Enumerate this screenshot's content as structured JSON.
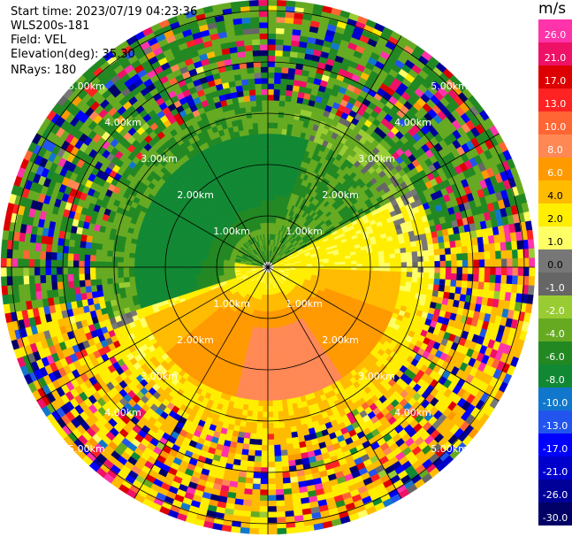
{
  "header": {
    "start_time": "Start time: 2023/07/19 04:23:36",
    "instrument": "WLS200s-181",
    "field": "Field: VEL",
    "elevation": "Elevation(deg): 35.30",
    "nrays": "NRays: 180"
  },
  "chart_data": {
    "type": "heatmap",
    "projection": "polar",
    "field": "VEL",
    "unit": "m/s",
    "range_rings_km": [
      1,
      2,
      3,
      4,
      5
    ],
    "ring_labels": [
      "1.00km",
      "2.00km",
      "3.00km",
      "4.00km",
      "5.00km"
    ],
    "spokes_deg": [
      0,
      30,
      60,
      90,
      120,
      150,
      180,
      210,
      240,
      270,
      300,
      330
    ],
    "colorbar": {
      "label": "m/s",
      "ticks": [
        "26.0",
        "21.0",
        "17.0",
        "13.0",
        "10.0",
        "8.0",
        "6.0",
        "4.0",
        "2.0",
        "1.0",
        "0.0",
        "-1.0",
        "-2.0",
        "-4.0",
        "-6.0",
        "-8.0",
        "-10.0",
        "-13.0",
        "-17.0",
        "-21.0",
        "-26.0",
        "-30.0"
      ],
      "colors": [
        "#ff33aa",
        "#ee1166",
        "#dd0000",
        "#ff2222",
        "#ff6633",
        "#ff8855",
        "#ff9900",
        "#ffbb00",
        "#ffee00",
        "#ffff66",
        "#777777",
        "#666666",
        "#99cc33",
        "#66aa22",
        "#228822",
        "#118833",
        "#1177cc",
        "#2255ee",
        "#0000ff",
        "#0000cc",
        "#000099",
        "#000066"
      ]
    },
    "pattern": {
      "approaching_max": -8,
      "receding_max": 8,
      "approach_azimuth_deg": 315,
      "recede_azimuth_deg": 170
    }
  }
}
